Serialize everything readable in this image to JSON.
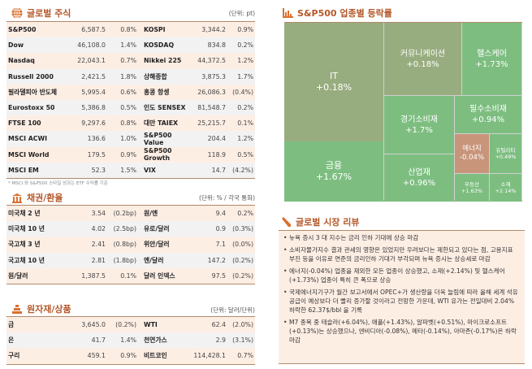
{
  "global_stocks": {
    "title": "글로벌 주식",
    "unit": "(단위: pt)",
    "rows": [
      [
        "S&P500",
        "6,587.5",
        "0.8%",
        "KOSPI",
        "3,344.2",
        "0.9%"
      ],
      [
        "Dow",
        "46,108.0",
        "1.4%",
        "KOSDAQ",
        "834.8",
        "0.2%"
      ],
      [
        "Nasdaq",
        "22,043.1",
        "0.7%",
        "Nikkei 225",
        "44,372.5",
        "1.2%"
      ],
      [
        "Russell 2000",
        "2,421.5",
        "1.8%",
        "상해종합",
        "3,875.3",
        "1.7%"
      ],
      [
        "필라델피아 반도체",
        "5,995.4",
        "0.6%",
        "홍콩 항셍",
        "26,086.3",
        "(0.4%)"
      ],
      [
        "Eurostoxx 50",
        "5,386.8",
        "0.5%",
        "인도 SENSEX",
        "81,548.7",
        "0.2%"
      ],
      [
        "FTSE 100",
        "9,297.6",
        "0.8%",
        "대만 TAIEX",
        "25,215.7",
        "0.1%"
      ],
      [
        "MSCI ACWI",
        "136.6",
        "1.0%",
        "S&P500 Value",
        "204.4",
        "1.2%"
      ],
      [
        "MSCI World",
        "179.5",
        "0.9%",
        "S&P500 Growth",
        "118.9",
        "0.5%"
      ],
      [
        "MSCI EM",
        "52.3",
        "1.5%",
        "VIX",
        "14.7",
        "(4.2%)"
      ]
    ],
    "footnote": "* MSCI 와 S&P500 스타일 성과는 ETF 수익률 기준"
  },
  "bonds_fx": {
    "title": "채권/환율",
    "unit": "(단위: % / 각국 통화)",
    "rows": [
      [
        "미국채 2 년",
        "3.54",
        "(0.2bp)",
        "원/엔",
        "9.4",
        "0.2%"
      ],
      [
        "미국채 10 년",
        "4.02",
        "(2.5bp)",
        "유로/달러",
        "0.9",
        "(0.3%)"
      ],
      [
        "국고채 3 년",
        "2.41",
        "(0.8bp)",
        "위안/달러",
        "7.1",
        "(0.0%)"
      ],
      [
        "국고채 10 년",
        "2.81",
        "(1.8bp)",
        "엔/달러",
        "147.2",
        "(0.2%)"
      ],
      [
        "원/달러",
        "1,387.5",
        "0.1%",
        "달러 인덱스",
        "97.5",
        "(0.2%)"
      ]
    ]
  },
  "commodities": {
    "title": "원자재/상품",
    "unit": "(단위: 달러/단위)",
    "rows": [
      [
        "금",
        "3,645.0",
        "(0.2%)",
        "WTI",
        "62.4",
        "(2.0%)"
      ],
      [
        "은",
        "41.7",
        "1.4%",
        "천연가스",
        "2.9",
        "(3.1%)"
      ],
      [
        "구리",
        "459.1",
        "0.9%",
        "비트코인",
        "114,428.1",
        "0.7%"
      ]
    ]
  },
  "treemap": {
    "title": "S&P500 업종별 등락률",
    "colors": {
      "olive": "#98ad7f",
      "green": "#7dbe80",
      "red": "#c8957a"
    },
    "sectors": [
      {
        "name": "IT",
        "change": "+0.18%"
      },
      {
        "name": "금융",
        "change": "+1.67%"
      },
      {
        "name": "커뮤니케이션",
        "change": "+0.18%"
      },
      {
        "name": "헬스케어",
        "change": "+1.73%"
      },
      {
        "name": "경기소비재",
        "change": "+1.7%"
      },
      {
        "name": "산업재",
        "change": "+0.96%"
      },
      {
        "name": "필수소비재",
        "change": "+0.94%"
      },
      {
        "name": "에너지",
        "change": "-0.04%"
      },
      {
        "name": "유틸리티",
        "change": "+0.49%"
      },
      {
        "name": "부동산",
        "change": "+1.63%"
      },
      {
        "name": "소재",
        "change": "+2.14%"
      }
    ]
  },
  "review": {
    "title": "글로벌 시장 리뷰",
    "items": [
      "뉴욕 증시 3 대 지수는 금리 인하 기대에 상승 마감",
      "소비자물가지수 결과 관세의 영향은 있었지만 우려보다는 제한되고 있다는 점, 고용지표 부진 등을 이유로 연준의 금리인하 기대가 부각되며 뉴욕 증시는 상승세로 마감",
      "에너지(-0.04%) 업종을 제외한 모든 업종이 상승했고, 소재(+2.14%) 및 헬스케어(+1.73%) 업종이 특히 큰 폭으로 상승",
      "국제에너지기구가 월간 보고서에서 OPEC+가 생산량을 더욱 늘림에 따라 올해 세계 석유 공급이 예상보다 더 빨리 증가할 것이라고 전망한 가운데, WTI 유가는 전일대비 2.04% 하락한 62.37$/bbl 을 기록",
      "M7 종목 중 테슬라(+6.04%), 애플(+1.43%), 알파벳(+0.51%), 마이크로소프트(+0.13%)는 상승했으나, 엔비디아(-0.08%), 메타(-0.14%), 아마존(-0.17%)은 하락 마감"
    ]
  }
}
